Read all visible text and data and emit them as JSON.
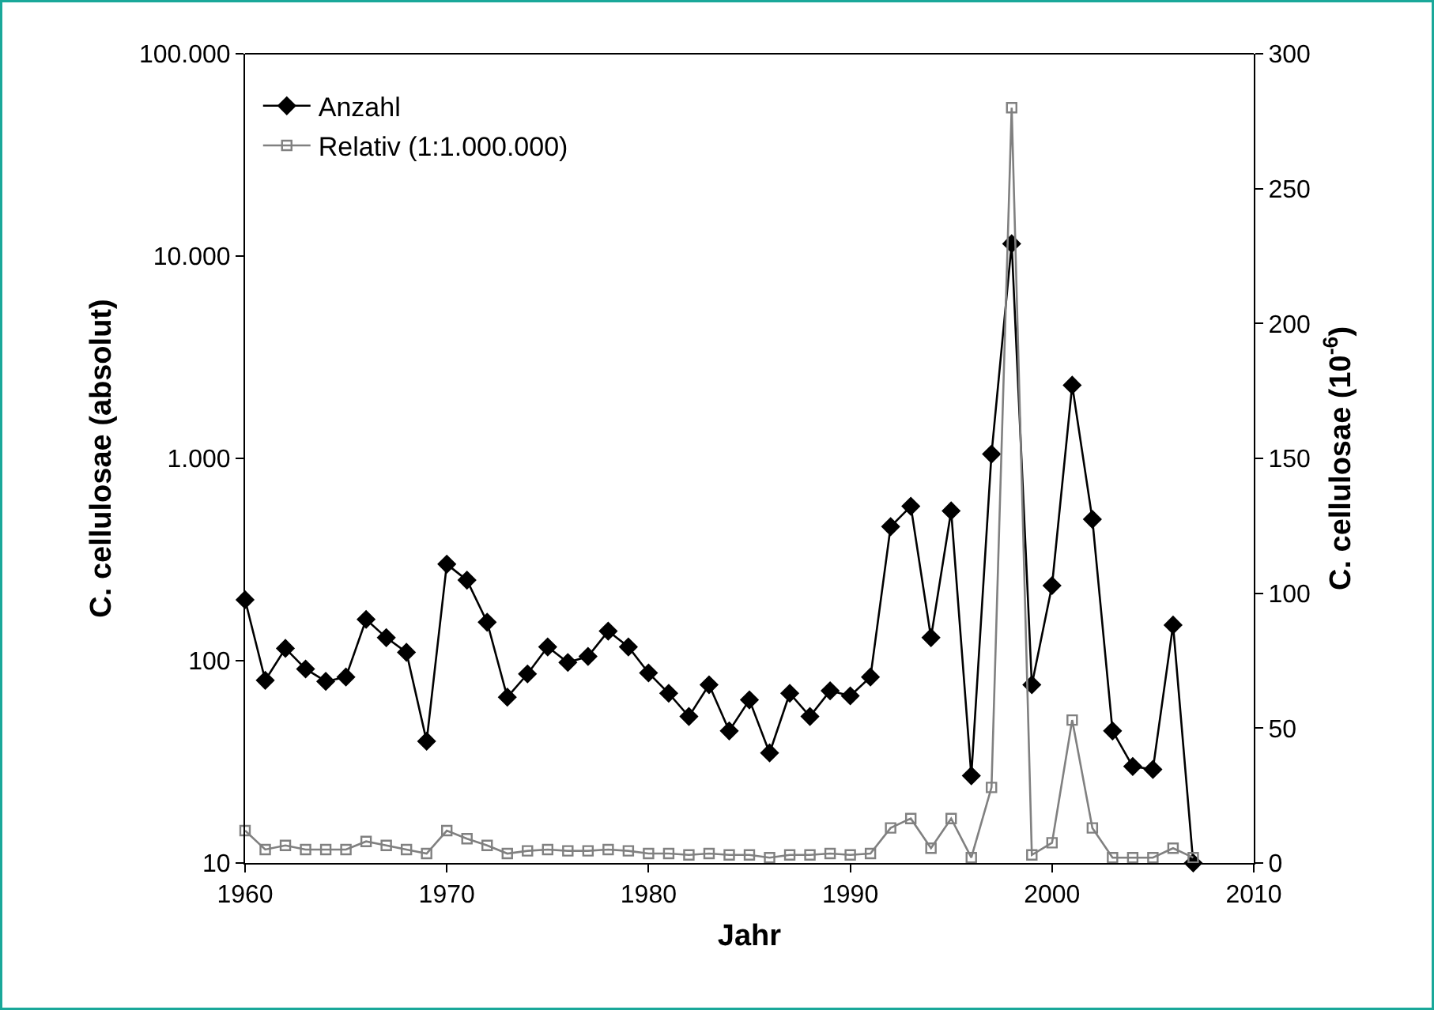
{
  "chart_data": {
    "type": "line",
    "xlabel": "Jahr",
    "ylabel": "C. cellulosae (absolut)",
    "y2label": "C. cellulosae (10$^{-6}$)",
    "x": [
      1960,
      1961,
      1962,
      1963,
      1964,
      1965,
      1966,
      1967,
      1968,
      1969,
      1970,
      1971,
      1972,
      1973,
      1974,
      1975,
      1976,
      1977,
      1978,
      1979,
      1980,
      1981,
      1982,
      1983,
      1984,
      1985,
      1986,
      1987,
      1988,
      1989,
      1990,
      1991,
      1992,
      1993,
      1994,
      1995,
      1996,
      1997,
      1998,
      1999,
      2000,
      2001,
      2002,
      2003,
      2004,
      2005,
      2006,
      2007
    ],
    "series": [
      {
        "name": "Anzahl",
        "color": "#000000",
        "marker": "diamond",
        "values": [
          200,
          80,
          115,
          91,
          79,
          83,
          160,
          130,
          110,
          40,
          300,
          250,
          155,
          66,
          86,
          117,
          98,
          105,
          140,
          117,
          87,
          69,
          53,
          76,
          45,
          64,
          35,
          69,
          53,
          71,
          67,
          83,
          460,
          580,
          130,
          550,
          27,
          1050,
          11500,
          76,
          235,
          2300,
          500,
          45,
          30,
          29,
          150,
          10
        ]
      },
      {
        "name": "Relativ (1:1.000.000)",
        "color": "#808080",
        "marker": "square",
        "axis": "y2",
        "values": [
          12,
          5,
          6.5,
          5,
          5,
          5,
          8,
          6.5,
          5,
          3.5,
          12,
          9,
          6.5,
          3.5,
          4.5,
          5,
          4.5,
          4.5,
          5,
          4.5,
          3.5,
          3.5,
          3,
          3.5,
          3,
          3,
          2,
          3,
          3,
          3.5,
          3,
          3.5,
          13,
          16.5,
          5.5,
          16.5,
          2,
          28,
          280,
          3,
          7.5,
          53,
          13,
          2,
          2,
          2,
          5.5,
          2
        ]
      }
    ],
    "log": "y",
    "ylim": [
      10,
      100000
    ],
    "yticks": [
      {
        "value": 10,
        "label": "10"
      },
      {
        "value": 100,
        "label": "100"
      },
      {
        "value": 1000,
        "label": "1.000"
      },
      {
        "value": 10000,
        "label": "10.000"
      },
      {
        "value": 100000,
        "label": "100.000"
      }
    ],
    "y2lim": [
      0,
      300
    ],
    "y2ticks": [
      0,
      50,
      100,
      150,
      200,
      250,
      300
    ],
    "xlim": [
      1960,
      2010
    ],
    "xticks": [
      1960,
      1970,
      1980,
      1990,
      2000,
      2010
    ],
    "legend": "top left",
    "line_style": "solid"
  }
}
